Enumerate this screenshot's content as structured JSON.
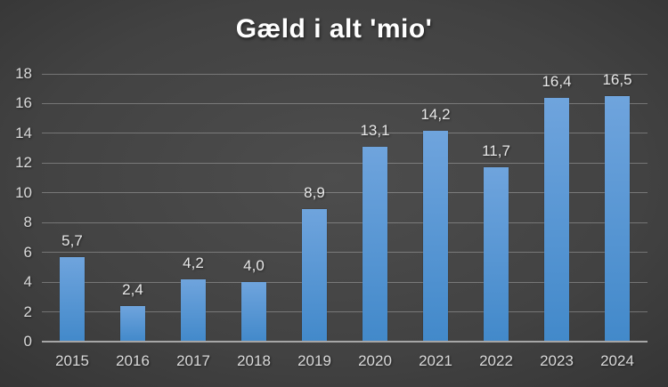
{
  "chart_data": {
    "type": "bar",
    "title": "Gæld i alt 'mio'",
    "categories": [
      "2015",
      "2016",
      "2017",
      "2018",
      "2019",
      "2020",
      "2021",
      "2022",
      "2023",
      "2024"
    ],
    "values": [
      5.7,
      2.4,
      4.2,
      4.0,
      8.9,
      13.1,
      14.2,
      11.7,
      16.4,
      16.5
    ],
    "value_labels": [
      "5,7",
      "2,4",
      "4,2",
      "4,0",
      "8,9",
      "13,1",
      "14,2",
      "11,7",
      "16,4",
      "16,5"
    ],
    "xlabel": "",
    "ylabel": "",
    "ylim": [
      0,
      18
    ],
    "ytick_step": 2,
    "ytick_labels": [
      "0",
      "2",
      "4",
      "6",
      "8",
      "10",
      "12",
      "14",
      "16",
      "18"
    ],
    "grid": true,
    "legend": "none",
    "colors": {
      "bar_top": "#6fa4dd",
      "bar_bottom": "#4289ca",
      "background_center": "#4d4d4d",
      "background_edge": "#242424",
      "gridline": "rgba(255,255,255,0.28)",
      "axis_line": "#a6a6a6",
      "tick_label": "#d9d9d9",
      "data_label": "#e8e8e8",
      "title": "#ffffff"
    }
  }
}
